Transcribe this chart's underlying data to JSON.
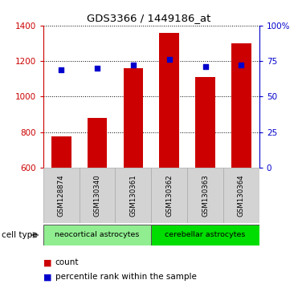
{
  "title": "GDS3366 / 1449186_at",
  "samples": [
    "GSM128874",
    "GSM130340",
    "GSM130361",
    "GSM130362",
    "GSM130363",
    "GSM130364"
  ],
  "counts": [
    775,
    880,
    1160,
    1360,
    1110,
    1300
  ],
  "percentiles": [
    69,
    70,
    72,
    76,
    71,
    72
  ],
  "ylim_left": [
    600,
    1400
  ],
  "ylim_right": [
    0,
    100
  ],
  "yticks_left": [
    600,
    800,
    1000,
    1200,
    1400
  ],
  "yticks_right": [
    0,
    25,
    50,
    75,
    100
  ],
  "ytick_labels_right": [
    "0",
    "25",
    "50",
    "75",
    "100%"
  ],
  "bar_color": "#cc0000",
  "dot_color": "#0000cc",
  "bar_width": 0.55,
  "groups": [
    {
      "label": "neocortical astrocytes",
      "start": 0,
      "end": 3,
      "color": "#90ee90"
    },
    {
      "label": "cerebellar astrocytes",
      "start": 3,
      "end": 6,
      "color": "#00dd00"
    }
  ],
  "cell_type_label": "cell type",
  "legend_count": "count",
  "legend_percentile": "percentile rank within the sample",
  "tick_color_left": "#cc0000",
  "tick_color_right": "#0000cc",
  "bg_color": "#ffffff",
  "sample_box_color": "#d3d3d3"
}
